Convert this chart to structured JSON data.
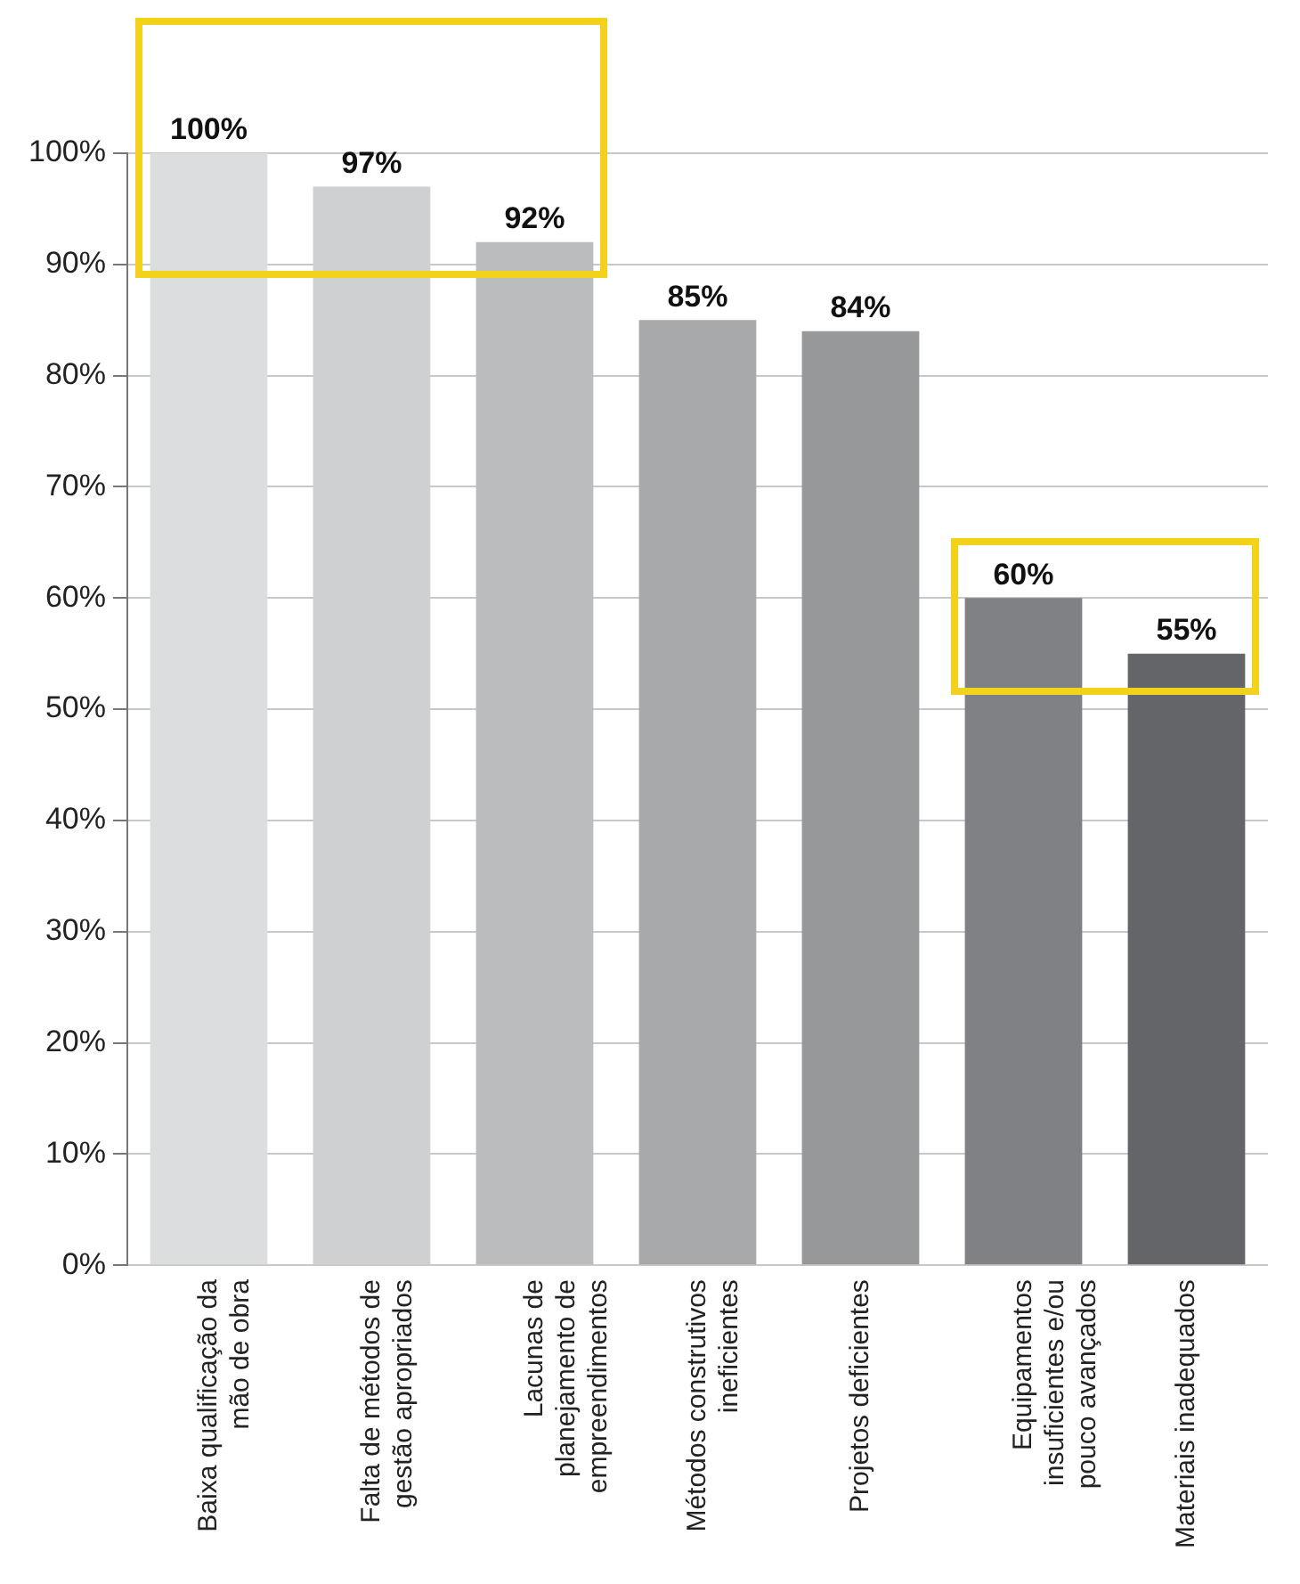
{
  "chart_data": {
    "type": "bar",
    "categories": [
      "Baixa qualificação da mão de obra",
      "Falta de métodos de gestão apropriados",
      "Lacunas de planejamento de empreendimentos",
      "Métodos construtivos ineficientes",
      "Projetos deficientes",
      "Equipamentos insuficientes e/ou pouco avançados",
      "Materiais inadequados"
    ],
    "values": [
      100,
      97,
      92,
      85,
      84,
      60,
      55
    ],
    "colors": [
      "#dcdddf",
      "#cfd0d2",
      "#bbbcbe",
      "#a8a9ab",
      "#97989a",
      "#808184",
      "#646569"
    ],
    "value_labels": [
      "100%",
      "97%",
      "92%",
      "85%",
      "84%",
      "60%",
      "55%"
    ],
    "ylim": [
      0,
      100
    ],
    "yticks": [
      {
        "value": 0,
        "label": "0%"
      },
      {
        "value": 10,
        "label": "10%"
      },
      {
        "value": 20,
        "label": "20%"
      },
      {
        "value": 30,
        "label": "30%"
      },
      {
        "value": 40,
        "label": "40%"
      },
      {
        "value": 50,
        "label": "50%"
      },
      {
        "value": 60,
        "label": "60%"
      },
      {
        "value": 70,
        "label": "70%"
      },
      {
        "value": 80,
        "label": "80%"
      },
      {
        "value": 90,
        "label": "90%"
      },
      {
        "value": 100,
        "label": "100%"
      }
    ],
    "grid": "y"
  }
}
